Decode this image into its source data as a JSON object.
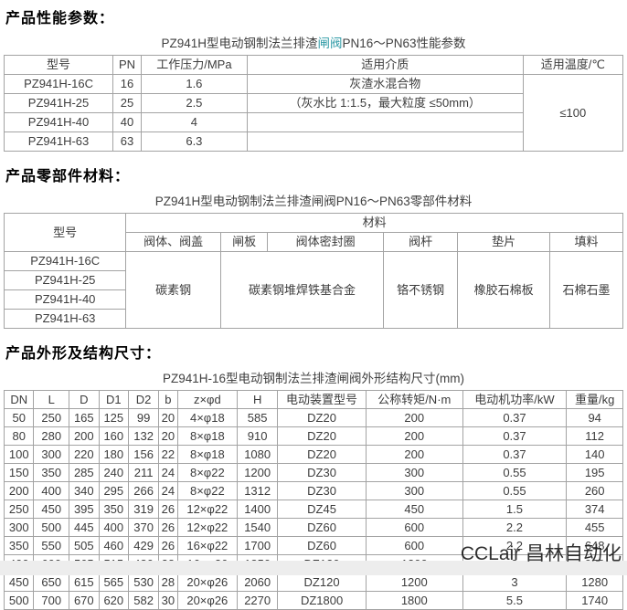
{
  "colors": {
    "link": "#2E9AA6",
    "border": "#a3a3a3",
    "text": "#3c3c3c",
    "watermark": "#141414"
  },
  "section1": {
    "heading": "产品性能参数：",
    "title_pre": "PZ941H型电动钢制法兰排渣",
    "title_link": "闸阀",
    "title_post": "PN16～PN63性能参数",
    "table": {
      "headers": [
        "型号",
        "PN",
        "工作压力/MPa",
        "适用介质",
        "适用温度/℃"
      ],
      "rows": [
        {
          "model": "PZ941H-16C",
          "pn": "16",
          "pressure": "1.6",
          "medium": "灰渣水混合物"
        },
        {
          "model": "PZ941H-25",
          "pn": "25",
          "pressure": "2.5",
          "medium": "（灰水比 1:1.5，最大粒度 ≤50mm）"
        },
        {
          "model": "PZ941H-40",
          "pn": "40",
          "pressure": "4",
          "medium": ""
        },
        {
          "model": "PZ941H-63",
          "pn": "63",
          "pressure": "6.3",
          "medium": ""
        }
      ],
      "temperature": "≤100"
    }
  },
  "section2": {
    "heading": "产品零部件材料：",
    "title": "PZ941H型电动钢制法兰排渣闸阀PN16～PN63零部件材料",
    "table": {
      "col_model": "型号",
      "col_material": "材料",
      "sub_headers": [
        "阀体、阀盖",
        "闸板",
        "阀体密封圈",
        "阀杆",
        "垫片",
        "填料"
      ],
      "models": [
        "PZ941H-16C",
        "PZ941H-25",
        "PZ941H-40",
        "PZ941H-63"
      ],
      "materials": {
        "body_bonnet": "碳素钢",
        "disc_and_seal": "碳素钢堆焊铁基合金",
        "stem": "铬不锈钢",
        "gasket": "橡胶石棉板",
        "packing": "石棉石墨"
      }
    }
  },
  "section3": {
    "heading": "产品外形及结构尺寸：",
    "title": "PZ941H-16型电动钢制法兰排渣闸阀外形结构尺寸(mm)",
    "table": {
      "headers": [
        "DN",
        "L",
        "D",
        "D1",
        "D2",
        "b",
        "z×φd",
        "H",
        "电动装置型号",
        "公称转矩/N·m",
        "电动机功率/kW",
        "重量/kg"
      ],
      "rows": [
        [
          "50",
          "250",
          "165",
          "125",
          "99",
          "20",
          "4×φ18",
          "585",
          "DZ20",
          "200",
          "0.37",
          "94"
        ],
        [
          "80",
          "280",
          "200",
          "160",
          "132",
          "20",
          "8×φ18",
          "910",
          "DZ20",
          "200",
          "0.37",
          "112"
        ],
        [
          "100",
          "300",
          "220",
          "180",
          "156",
          "22",
          "8×φ18",
          "1080",
          "DZ20",
          "200",
          "0.37",
          "140"
        ],
        [
          "150",
          "350",
          "285",
          "240",
          "211",
          "24",
          "8×φ22",
          "1200",
          "DZ30",
          "300",
          "0.55",
          "195"
        ],
        [
          "200",
          "400",
          "340",
          "295",
          "266",
          "24",
          "8×φ22",
          "1312",
          "DZ30",
          "300",
          "0.55",
          "260"
        ],
        [
          "250",
          "450",
          "395",
          "350",
          "319",
          "26",
          "12×φ22",
          "1400",
          "DZ45",
          "450",
          "1.5",
          "374"
        ],
        [
          "300",
          "500",
          "445",
          "400",
          "370",
          "26",
          "12×φ22",
          "1540",
          "DZ60",
          "600",
          "2.2",
          "455"
        ],
        [
          "350",
          "550",
          "505",
          "460",
          "429",
          "26",
          "16×φ22",
          "1700",
          "DZ60",
          "600",
          "2.2",
          "648"
        ],
        [
          "400",
          "600",
          "565",
          "515",
          "480",
          "28",
          "16×φ26",
          "1850",
          "DZ120",
          "1200",
          "3",
          "960"
        ],
        [
          "450",
          "650",
          "615",
          "565",
          "530",
          "28",
          "20×φ26",
          "2060",
          "DZ120",
          "1200",
          "3",
          "1280"
        ],
        [
          "500",
          "700",
          "670",
          "620",
          "582",
          "30",
          "20×φ26",
          "2270",
          "DZ1800",
          "1800",
          "5.5",
          "1740"
        ]
      ]
    }
  },
  "watermark": "CCLair 昌林自动化"
}
